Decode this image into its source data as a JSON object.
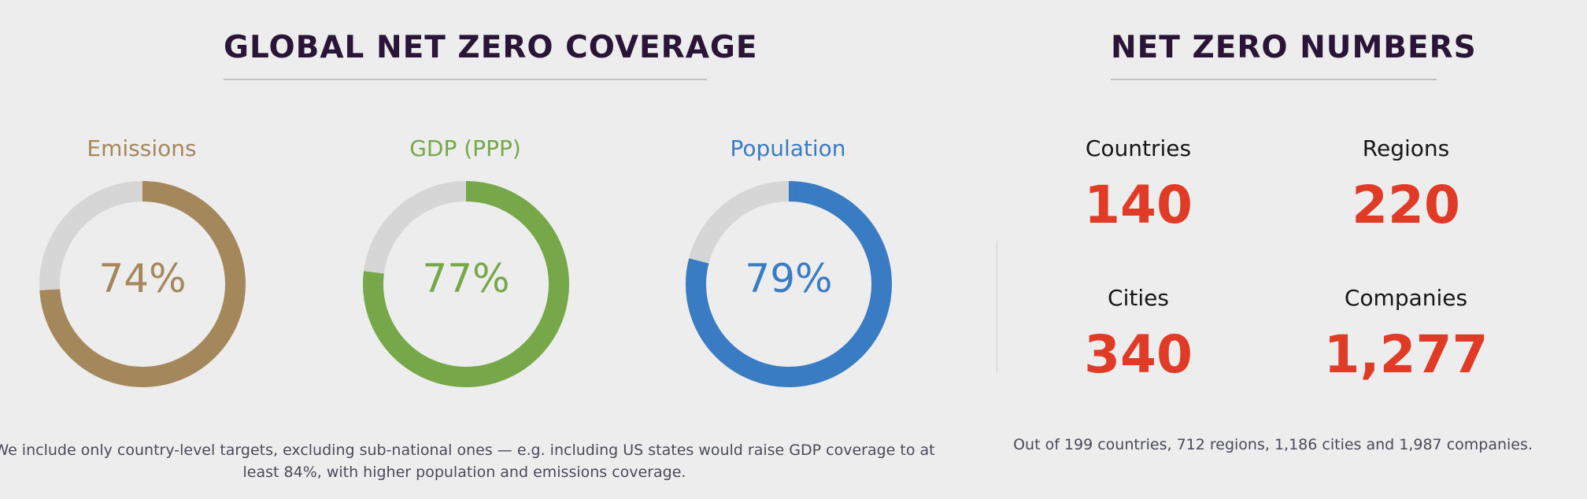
{
  "coverage": {
    "title": "GLOBAL NET ZERO COVERAGE",
    "footnote_line1": "We include only country-level targets, excluding sub-national ones — e.g. including US states would raise GDP coverage to at",
    "footnote_line2": "least 84%, with higher population and emissions coverage."
  },
  "numbers": {
    "title": "NET ZERO NUMBERS",
    "stats": [
      {
        "label": "Countries",
        "value": "140"
      },
      {
        "label": "Regions",
        "value": "220"
      },
      {
        "label": "Cities",
        "value": "340"
      },
      {
        "label": "Companies",
        "value": "1,277"
      }
    ],
    "footnote": "Out of 199 countries, 712 regions, 1,186 cities and 1,987 companies."
  },
  "chart_data": {
    "type": "pie",
    "title": "GLOBAL NET ZERO COVERAGE",
    "categories": [
      "Emissions",
      "GDP (PPP)",
      "Population"
    ],
    "values": [
      74,
      77,
      79
    ],
    "value_labels": [
      "74%",
      "77%",
      "79%"
    ],
    "colors": [
      "#a5875c",
      "#76a84a",
      "#3a7cc4"
    ],
    "track_color": "#d6d6d6",
    "unit": "%"
  }
}
